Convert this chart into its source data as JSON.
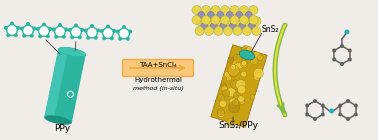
{
  "bg_color": "#f0ede8",
  "ppy_color": "#2bb5a0",
  "ppy_label": "PPy",
  "sns2_label": "SnS₂",
  "composite_label": "SnS₂/PPy",
  "arrow_text1": "TAA+SnCl₄",
  "arrow_text2": "Hydrothermal",
  "arrow_text3": "method (in-situ)",
  "arrow_bg_color": "#f9c87a",
  "arrow_border_color": "#f0a840",
  "sns2_color_s": "#e8d44d",
  "sns2_color_sn": "#9090b8",
  "composite_body_color": "#c8a010",
  "composite_teal": "#2bb5a0",
  "reaction_arrow_green": "#7db840",
  "reaction_arrow_yellow": "#e8e040",
  "mol_color": "#606060",
  "nh2_color": "#20b0c0",
  "bond_color": "#555555"
}
